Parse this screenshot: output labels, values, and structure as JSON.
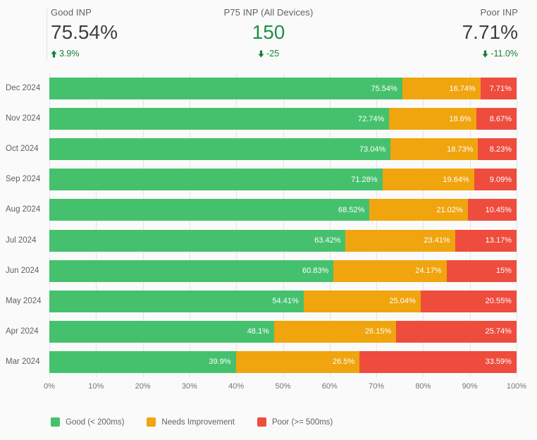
{
  "scorecards": [
    {
      "label": "Good INP",
      "value": "75.54%",
      "value_color": "#3c4043",
      "delta": "3.9%",
      "delta_dir": "up",
      "delta_color": "#188038"
    },
    {
      "label": "P75 INP (All Devices)",
      "value": "150",
      "value_color": "#1e9147",
      "delta": "-25",
      "delta_dir": "down",
      "delta_color": "#188038"
    },
    {
      "label": "Poor INP",
      "value": "7.71%",
      "value_color": "#3c4043",
      "delta": "-11.0%",
      "delta_dir": "down",
      "delta_color": "#188038"
    }
  ],
  "chart_data": {
    "type": "bar",
    "orientation": "horizontal",
    "stacked": true,
    "title": "",
    "categories": [
      "Dec 2024",
      "Nov 2024",
      "Oct 2024",
      "Sep 2024",
      "Aug 2024",
      "Jul 2024",
      "Jun 2024",
      "May 2024",
      "Apr 2024",
      "Mar 2024"
    ],
    "series": [
      {
        "key": "good",
        "name": "Good (< 200ms)",
        "color": "#45c16d",
        "values": [
          75.54,
          72.74,
          73.04,
          71.28,
          68.52,
          63.42,
          60.83,
          54.41,
          48.1,
          39.9
        ],
        "labels": [
          "75.54%",
          "72.74%",
          "73.04%",
          "71.28%",
          "68.52%",
          "63.42%",
          "60.83%",
          "54.41%",
          "48.1%",
          "39.9%"
        ]
      },
      {
        "key": "needs-improvement",
        "name": "Needs Improvement",
        "color": "#f0a40e",
        "values": [
          16.74,
          18.6,
          18.73,
          19.64,
          21.02,
          23.41,
          24.17,
          25.04,
          26.15,
          26.5
        ],
        "labels": [
          "16.74%",
          "18.6%",
          "18.73%",
          "19.64%",
          "21.02%",
          "23.41%",
          "24.17%",
          "25.04%",
          "26.15%",
          "26.5%"
        ]
      },
      {
        "key": "poor",
        "name": "Poor (>= 500ms)",
        "color": "#ee4c3d",
        "values": [
          7.71,
          8.67,
          8.23,
          9.09,
          10.45,
          13.17,
          15,
          20.55,
          25.74,
          33.59
        ],
        "labels": [
          "7.71%",
          "8.67%",
          "8.23%",
          "9.09%",
          "10.45%",
          "13.17%",
          "15%",
          "20.55%",
          "25.74%",
          "33.59%"
        ]
      }
    ],
    "x_ticks": [
      "0%",
      "10%",
      "20%",
      "30%",
      "40%",
      "50%",
      "60%",
      "70%",
      "80%",
      "90%",
      "100%"
    ],
    "xlim": [
      0,
      100
    ],
    "grid": true,
    "legend_position": "bottom"
  }
}
